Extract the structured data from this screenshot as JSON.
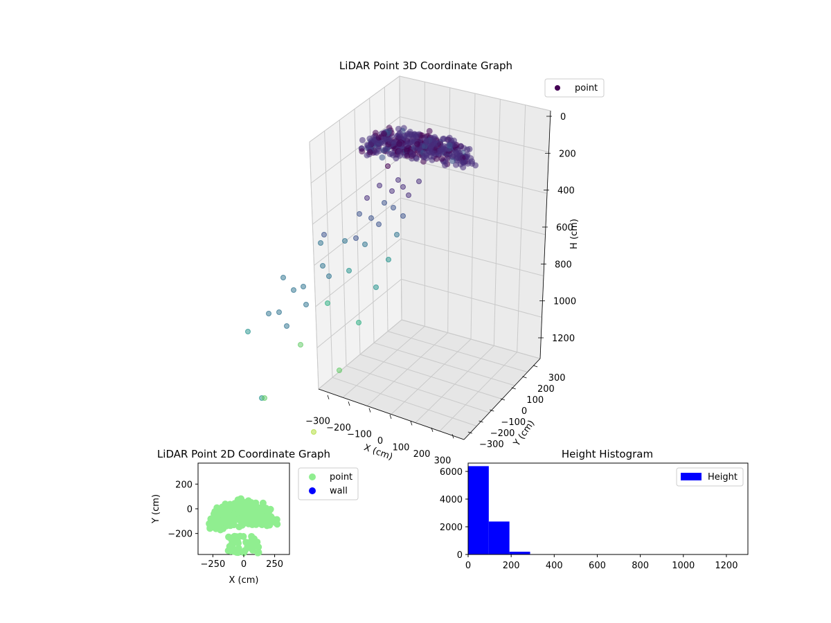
{
  "chart_data": [
    {
      "type": "scatter",
      "projection": "3d",
      "title": "LiDAR Point 3D Coordinate Graph",
      "xlabel": "X (cm)",
      "ylabel": "Y (cm)",
      "zlabel": "H (cm)",
      "x_ticks": [
        -300,
        -200,
        -100,
        0,
        100,
        200,
        300
      ],
      "y_ticks": [
        -300,
        -200,
        -100,
        0,
        100,
        200,
        300
      ],
      "z_ticks": [
        0,
        200,
        400,
        600,
        800,
        1000,
        1200
      ],
      "z_inverted": true,
      "colormap": "viridis",
      "legend": [
        {
          "label": "point",
          "color": "#440154"
        }
      ],
      "legend_position": "upper-right",
      "grid": true
    },
    {
      "type": "scatter",
      "title": "LiDAR Point 2D Coordinate Graph",
      "xlabel": "X (cm)",
      "ylabel": "Y (cm)",
      "xlim": [
        -370,
        370
      ],
      "ylim": [
        -370,
        370
      ],
      "x_ticks": [
        -250,
        0,
        250
      ],
      "y_ticks": [
        200,
        0,
        -200
      ],
      "series": [
        {
          "name": "point",
          "color": "#90ee90"
        },
        {
          "name": "wall",
          "color": "#0000ff"
        }
      ],
      "legend_position": "outside-right"
    },
    {
      "type": "bar",
      "title": "Height Histogram",
      "xlim": [
        0,
        1300
      ],
      "ylim": [
        0,
        6600
      ],
      "x_ticks": [
        0,
        200,
        400,
        600,
        800,
        1000,
        1200
      ],
      "y_ticks": [
        0,
        2000,
        4000,
        6000
      ],
      "bins": [
        {
          "x0": 0,
          "x1": 96,
          "count": 6380
        },
        {
          "x0": 96,
          "x1": 192,
          "count": 2380
        },
        {
          "x0": 192,
          "x1": 288,
          "count": 200
        },
        {
          "x0": 288,
          "x1": 384,
          "count": 20
        }
      ],
      "color": "#0000ff",
      "series": [
        {
          "name": "Height",
          "color": "#0000ff"
        }
      ],
      "legend_position": "upper-right"
    }
  ]
}
